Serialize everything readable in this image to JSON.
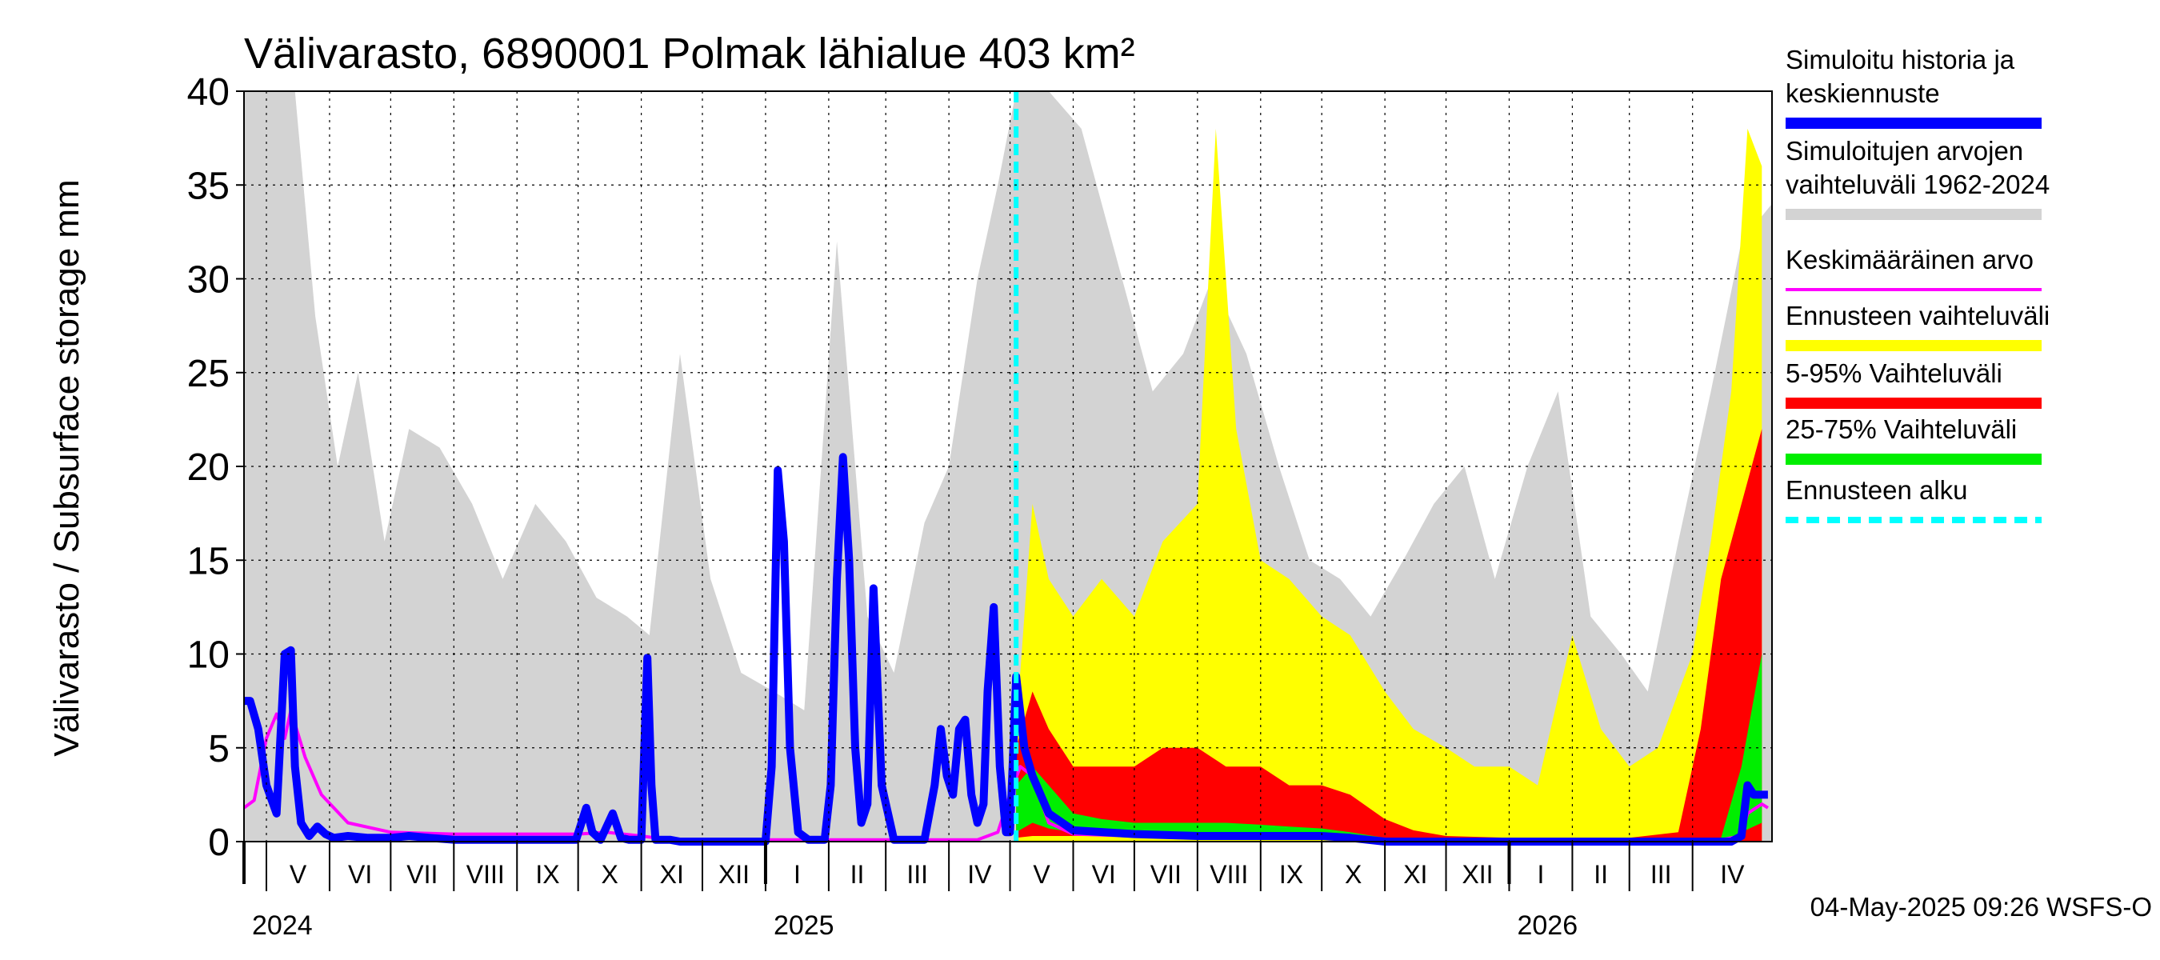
{
  "chart_data": {
    "type": "area",
    "title": "Välivarasto, 6890001 Polmak lähialue 403 km²",
    "ylabel": "Välivarasto / Subsurface storage  mm",
    "ylim": [
      0,
      40
    ],
    "yticks": [
      0,
      5,
      10,
      15,
      20,
      25,
      30,
      35,
      40
    ],
    "x_range": [
      "2024-04-20",
      "2026-05-10"
    ],
    "forecast_start": "2025-05-04",
    "months": [
      {
        "label": "V",
        "start": "2024-05-01"
      },
      {
        "label": "VI",
        "start": "2024-06-01"
      },
      {
        "label": "VII",
        "start": "2024-07-01"
      },
      {
        "label": "VIII",
        "start": "2024-08-01"
      },
      {
        "label": "IX",
        "start": "2024-09-01"
      },
      {
        "label": "X",
        "start": "2024-10-01"
      },
      {
        "label": "XI",
        "start": "2024-11-01"
      },
      {
        "label": "XII",
        "start": "2024-12-01"
      },
      {
        "label": "I",
        "start": "2025-01-01"
      },
      {
        "label": "II",
        "start": "2025-02-01"
      },
      {
        "label": "III",
        "start": "2025-03-01"
      },
      {
        "label": "IV",
        "start": "2025-04-01"
      },
      {
        "label": "V",
        "start": "2025-05-01"
      },
      {
        "label": "VI",
        "start": "2025-06-01"
      },
      {
        "label": "VII",
        "start": "2025-07-01"
      },
      {
        "label": "VIII",
        "start": "2025-08-01"
      },
      {
        "label": "IX",
        "start": "2025-09-01"
      },
      {
        "label": "X",
        "start": "2025-10-01"
      },
      {
        "label": "XI",
        "start": "2025-11-01"
      },
      {
        "label": "XII",
        "start": "2025-12-01"
      },
      {
        "label": "I",
        "start": "2026-01-01"
      },
      {
        "label": "II",
        "start": "2026-02-01"
      },
      {
        "label": "III",
        "start": "2026-03-01"
      },
      {
        "label": "IV",
        "start": "2026-04-01"
      }
    ],
    "years": [
      {
        "label": "2024",
        "at": "2024-04-20"
      },
      {
        "label": "2025",
        "at": "2025-01-01"
      },
      {
        "label": "2026",
        "at": "2026-01-01"
      }
    ],
    "series": [
      {
        "name": "Simuloitujen arvojen vaihteluväli 1962-2024",
        "kind": "band",
        "color": "#d3d3d3",
        "x": [
          "2024-04-20",
          "2024-05-05",
          "2024-05-15",
          "2024-05-25",
          "2024-06-05",
          "2024-06-15",
          "2024-06-28",
          "2024-07-10",
          "2024-07-25",
          "2024-08-10",
          "2024-08-25",
          "2024-09-10",
          "2024-09-25",
          "2024-10-10",
          "2024-10-25",
          "2024-11-05",
          "2024-11-20",
          "2024-12-05",
          "2024-12-20",
          "2025-01-05",
          "2025-01-20",
          "2025-02-05",
          "2025-02-20",
          "2025-03-05",
          "2025-03-20",
          "2025-04-01",
          "2025-04-15",
          "2025-04-25",
          "2025-05-04",
          "2025-05-20",
          "2025-06-05",
          "2025-06-25",
          "2025-07-10",
          "2025-07-25",
          "2025-08-08",
          "2025-08-25",
          "2025-09-10",
          "2025-09-25",
          "2025-10-10",
          "2025-10-25",
          "2025-11-10",
          "2025-11-25",
          "2025-12-10",
          "2025-12-25",
          "2026-01-10",
          "2026-01-25",
          "2026-02-10",
          "2026-02-25",
          "2026-03-10",
          "2026-03-25",
          "2026-04-10",
          "2026-04-25",
          "2026-05-10"
        ],
        "upper": [
          40,
          40,
          40,
          28,
          20,
          25,
          16,
          22,
          21,
          18,
          14,
          18,
          16,
          13,
          12,
          11,
          26,
          14,
          9,
          8,
          7,
          32,
          12,
          9,
          17,
          20,
          30,
          35,
          40,
          40,
          38,
          30,
          24,
          26,
          30,
          26,
          20,
          15,
          14,
          12,
          15,
          18,
          20,
          14,
          20,
          24,
          12,
          10,
          8,
          16,
          24,
          32,
          34
        ],
        "lower": [
          0,
          0,
          0,
          0,
          0,
          0,
          0,
          0,
          0,
          0,
          0,
          0,
          0,
          0,
          0,
          0,
          0,
          0,
          0,
          0,
          0,
          0,
          0,
          0,
          0,
          0,
          0,
          0,
          0,
          0,
          0,
          0,
          0,
          0,
          0,
          0,
          0,
          0,
          0,
          0,
          0,
          0,
          0,
          0,
          0,
          0,
          0,
          0,
          0,
          0,
          0,
          0,
          0
        ]
      },
      {
        "name": "Ennusteen vaihteluväli",
        "kind": "band",
        "color": "#ffff00",
        "x": [
          "2025-05-04",
          "2025-05-12",
          "2025-05-20",
          "2025-06-01",
          "2025-06-15",
          "2025-07-01",
          "2025-07-15",
          "2025-08-01",
          "2025-08-10",
          "2025-08-20",
          "2025-09-01",
          "2025-09-15",
          "2025-10-01",
          "2025-10-15",
          "2025-11-01",
          "2025-11-15",
          "2025-12-01",
          "2025-12-15",
          "2026-01-01",
          "2026-01-15",
          "2026-02-01",
          "2026-02-15",
          "2026-03-01",
          "2026-03-15",
          "2026-04-01",
          "2026-04-10",
          "2026-04-20",
          "2026-04-28",
          "2026-05-05"
        ],
        "upper": [
          6,
          18,
          14,
          12,
          14,
          12,
          16,
          18,
          38,
          22,
          15,
          14,
          12,
          11,
          8,
          6,
          5,
          4,
          4,
          3,
          11,
          6,
          4,
          5,
          10,
          16,
          24,
          38,
          36
        ],
        "lower": [
          0,
          0,
          0,
          0,
          0,
          0,
          0,
          0,
          0,
          0,
          0,
          0,
          0,
          0,
          0,
          0,
          0,
          0,
          0,
          0,
          0,
          0,
          0,
          0,
          0,
          0,
          0,
          0,
          0
        ]
      },
      {
        "name": "5-95% Vaihteluväli",
        "kind": "band",
        "color": "#ff0000",
        "x": [
          "2025-05-04",
          "2025-05-12",
          "2025-05-20",
          "2025-06-01",
          "2025-06-15",
          "2025-07-01",
          "2025-07-15",
          "2025-08-01",
          "2025-08-15",
          "2025-09-01",
          "2025-09-15",
          "2025-10-01",
          "2025-10-15",
          "2025-11-01",
          "2025-11-15",
          "2025-12-01",
          "2026-01-01",
          "2026-02-01",
          "2026-03-01",
          "2026-03-25",
          "2026-04-05",
          "2026-04-15",
          "2026-04-25",
          "2026-05-05"
        ],
        "upper": [
          5,
          8,
          6,
          4,
          4,
          4,
          5,
          5,
          4,
          4,
          3,
          3,
          2.5,
          1.2,
          0.6,
          0.3,
          0.2,
          0.2,
          0.2,
          0.5,
          6,
          14,
          18,
          22
        ],
        "lower": [
          0.2,
          0.3,
          0.3,
          0.3,
          0.3,
          0.3,
          0.3,
          0.3,
          0.3,
          0.3,
          0.3,
          0.3,
          0.2,
          0.1,
          0,
          0,
          0,
          0,
          0,
          0,
          0,
          0,
          0,
          0
        ]
      },
      {
        "name": "25-75% Vaihteluväli",
        "kind": "band",
        "color": "#00ee00",
        "x": [
          "2025-05-04",
          "2025-05-12",
          "2025-05-20",
          "2025-06-01",
          "2025-06-15",
          "2025-07-01",
          "2025-07-15",
          "2025-08-01",
          "2025-08-15",
          "2025-09-01",
          "2025-09-15",
          "2025-10-01",
          "2025-10-15",
          "2025-11-01",
          "2025-11-15",
          "2026-04-15",
          "2026-04-25",
          "2026-05-05"
        ],
        "upper": [
          3,
          4,
          3,
          1.5,
          1.2,
          1.0,
          1.0,
          1.0,
          1.0,
          0.9,
          0.8,
          0.7,
          0.5,
          0.2,
          0.05,
          0.2,
          4,
          10
        ],
        "lower": [
          0.5,
          1,
          0.7,
          0.5,
          0.4,
          0.4,
          0.4,
          0.4,
          0.4,
          0.4,
          0.4,
          0.3,
          0.2,
          0.05,
          0,
          0,
          0.5,
          1
        ]
      },
      {
        "name": "Keskimääräinen arvo",
        "kind": "line",
        "color": "#ff00ff",
        "x": [
          "2024-04-20",
          "2024-04-25",
          "2024-05-01",
          "2024-05-06",
          "2024-05-10",
          "2024-05-13",
          "2024-05-20",
          "2024-05-28",
          "2024-06-10",
          "2024-07-01",
          "2024-08-01",
          "2024-09-01",
          "2024-10-01",
          "2024-10-15",
          "2024-11-01",
          "2024-11-15",
          "2025-04-15",
          "2025-04-25",
          "2025-05-01",
          "2025-05-06",
          "2025-05-12",
          "2025-05-20",
          "2025-06-01",
          "2025-07-01",
          "2025-08-01",
          "2025-09-01",
          "2025-10-01",
          "2025-10-15",
          "2025-11-01",
          "2026-04-15",
          "2026-04-25",
          "2026-04-28",
          "2026-05-05",
          "2026-05-08"
        ],
        "values": [
          1.8,
          2.2,
          5.5,
          6.8,
          5.5,
          7.0,
          4.5,
          2.5,
          1.0,
          0.5,
          0.4,
          0.4,
          0.4,
          0.5,
          0.3,
          0.1,
          0.1,
          0.5,
          2.5,
          4.0,
          3.5,
          1.0,
          0.4,
          0.3,
          0.3,
          0.3,
          0.3,
          0.2,
          0.1,
          0.1,
          0.3,
          1.5,
          2.0,
          1.8
        ]
      },
      {
        "name": "Simuloitu historia ja keskiennuste",
        "kind": "line",
        "color": "#0000ff",
        "x": [
          "2024-04-20",
          "2024-04-23",
          "2024-04-27",
          "2024-05-01",
          "2024-05-06",
          "2024-05-10",
          "2024-05-13",
          "2024-05-15",
          "2024-05-18",
          "2024-05-22",
          "2024-05-26",
          "2024-05-30",
          "2024-06-03",
          "2024-06-10",
          "2024-06-20",
          "2024-07-01",
          "2024-07-10",
          "2024-07-20",
          "2024-08-01",
          "2024-08-15",
          "2024-09-01",
          "2024-09-15",
          "2024-09-30",
          "2024-10-05",
          "2024-10-08",
          "2024-10-12",
          "2024-10-18",
          "2024-10-22",
          "2024-10-26",
          "2024-11-01",
          "2024-11-04",
          "2024-11-06",
          "2024-11-08",
          "2024-11-11",
          "2024-11-15",
          "2024-11-20",
          "2025-01-01",
          "2025-01-04",
          "2025-01-07",
          "2025-01-10",
          "2025-01-13",
          "2025-01-17",
          "2025-01-22",
          "2025-01-30",
          "2025-02-02",
          "2025-02-05",
          "2025-02-08",
          "2025-02-11",
          "2025-02-14",
          "2025-02-17",
          "2025-02-20",
          "2025-02-23",
          "2025-02-27",
          "2025-03-05",
          "2025-03-20",
          "2025-03-25",
          "2025-03-28",
          "2025-03-31",
          "2025-04-03",
          "2025-04-06",
          "2025-04-09",
          "2025-04-12",
          "2025-04-15",
          "2025-04-18",
          "2025-04-20",
          "2025-04-23",
          "2025-04-26",
          "2025-04-29",
          "2025-05-01",
          "2025-05-04",
          "2025-05-08",
          "2025-05-12",
          "2025-05-20",
          "2025-06-01",
          "2025-07-01",
          "2025-08-01",
          "2025-09-01",
          "2025-10-01",
          "2025-10-15",
          "2025-11-01",
          "2026-04-20",
          "2026-04-25",
          "2026-04-28",
          "2026-05-01",
          "2026-05-05",
          "2026-05-08"
        ],
        "values": [
          7.5,
          7.5,
          6.0,
          3.0,
          1.5,
          10.0,
          10.2,
          4.0,
          1.0,
          0.3,
          0.8,
          0.4,
          0.2,
          0.3,
          0.2,
          0.2,
          0.3,
          0.2,
          0.1,
          0.1,
          0.1,
          0.1,
          0.1,
          1.8,
          0.5,
          0.1,
          1.5,
          0.2,
          0.1,
          0.1,
          9.8,
          3.0,
          0.1,
          0.1,
          0.1,
          0.0,
          0.0,
          4.0,
          19.8,
          16.0,
          5.0,
          0.5,
          0.1,
          0.1,
          3.0,
          14.0,
          20.5,
          15.0,
          5.0,
          1.0,
          2.0,
          13.5,
          3.0,
          0.1,
          0.1,
          3.0,
          6.0,
          3.5,
          2.5,
          6.0,
          6.5,
          2.5,
          1.0,
          2.0,
          8.0,
          12.5,
          4.0,
          0.5,
          0.5,
          8.8,
          5.0,
          3.5,
          1.5,
          0.6,
          0.4,
          0.3,
          0.3,
          0.3,
          0.2,
          0.0,
          0.0,
          0.3,
          3.0,
          2.5,
          2.5,
          2.5
        ]
      },
      {
        "name": "Ennusteen alku",
        "kind": "vline",
        "color": "#00ffff",
        "x": [
          "2025-05-04"
        ]
      }
    ],
    "legend": [
      {
        "label": "Simuloitu historia ja keskiennuste",
        "color": "#0000ff",
        "style": "solid"
      },
      {
        "label": "Simuloitujen arvojen vaihteluväli 1962-2024",
        "color": "#d3d3d3",
        "style": "solid"
      },
      {
        "label": "Keskimääräinen arvo",
        "color": "#ff00ff",
        "style": "thin"
      },
      {
        "label": "Ennusteen vaihteluväli",
        "color": "#ffff00",
        "style": "solid"
      },
      {
        "label": "5-95% Vaihteluväli",
        "color": "#ff0000",
        "style": "solid"
      },
      {
        "label": "25-75% Vaihteluväli",
        "color": "#00ee00",
        "style": "solid"
      },
      {
        "label": "Ennusteen alku",
        "color": "#00ffff",
        "style": "dashed"
      }
    ],
    "legend_lines": [
      [
        "Simuloitu historia ja",
        "keskiennuste"
      ],
      [
        "Simuloitujen arvojen",
        "vaihteluväli 1962-2024"
      ],
      [
        "Keskimääräinen arvo"
      ],
      [
        "Ennusteen vaihteluväli"
      ],
      [
        "5-95% Vaihteluväli"
      ],
      [
        "25-75% Vaihteluväli"
      ],
      [
        "Ennusteen alku"
      ]
    ],
    "legend_placement": "right",
    "grid": true,
    "footer": "04-May-2025 09:26 WSFS-O"
  }
}
